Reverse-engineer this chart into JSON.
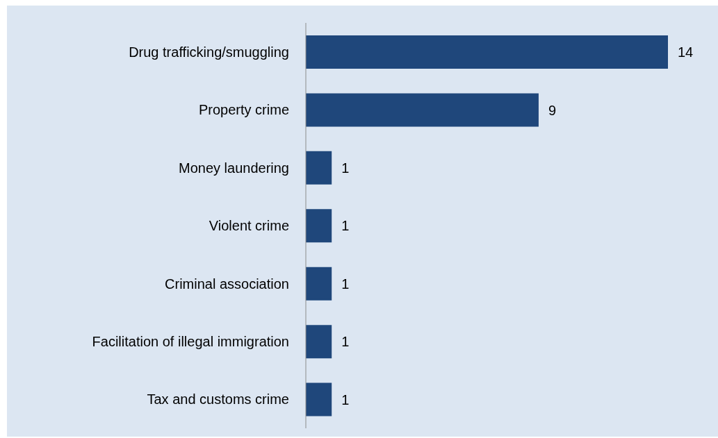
{
  "chart_data": {
    "type": "bar",
    "orientation": "horizontal",
    "categories": [
      "Drug trafficking/smuggling",
      "Property crime",
      "Money laundering",
      "Violent crime",
      "Criminal association",
      "Facilitation of illegal immigration",
      "Tax and customs crime"
    ],
    "values": [
      14,
      9,
      1,
      1,
      1,
      1,
      1
    ],
    "color": "#1f477b",
    "data_labels": true
  }
}
